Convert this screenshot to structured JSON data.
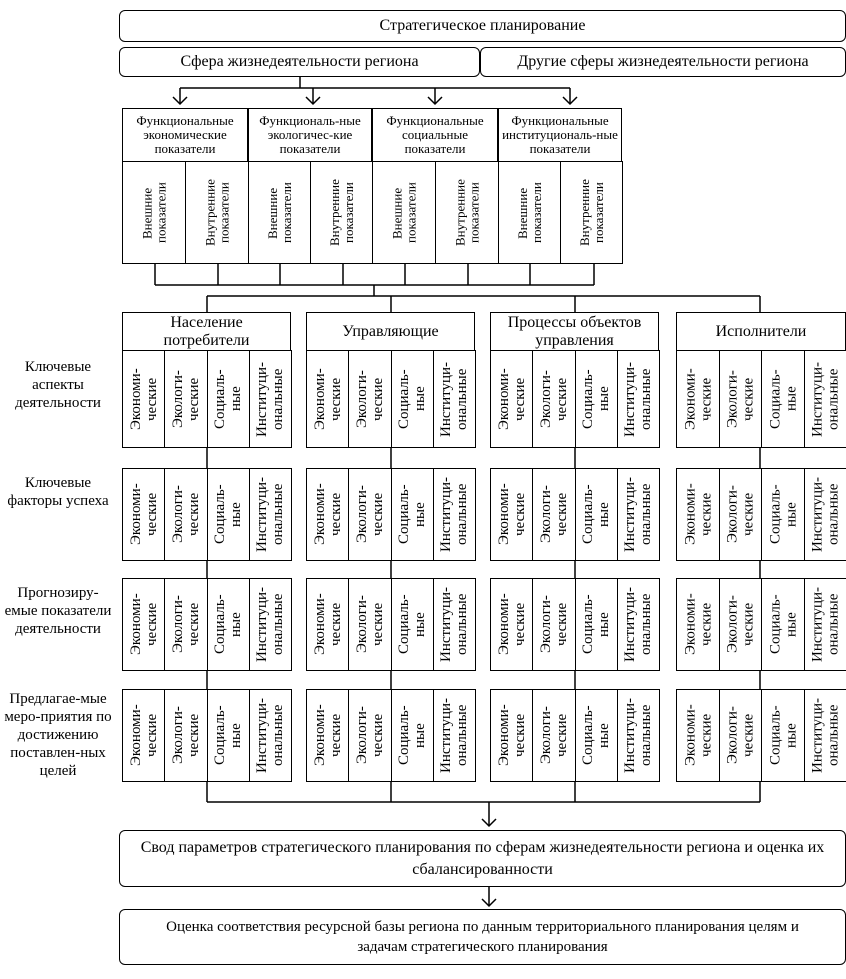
{
  "top": {
    "title": "Стратегическое планирование",
    "sphere": "Сфера жизнедеятельности региона",
    "other": "Другие сферы жизнедеятельности региона"
  },
  "func": [
    {
      "title": "Функциональные экономические показатели",
      "c1": "Внешние показатели",
      "c2": "Внутренние показатели"
    },
    {
      "title": "Функциональ-ные экологичес-кие показатели",
      "c1": "Внешние показатели",
      "c2": "Внутренние показатели"
    },
    {
      "title": "Функциональные социальные показатели",
      "c1": "Внешние показатели",
      "c2": "Внутренние показатели"
    },
    {
      "title": "Функциональные институциональ-ные показатели",
      "c1": "Внешние показатели",
      "c2": "Внутренние показатели"
    }
  ],
  "groups": [
    {
      "title": "Население потребители"
    },
    {
      "title": "Управляющие"
    },
    {
      "title": "Процессы объектов управления"
    },
    {
      "title": "Исполнители"
    }
  ],
  "rows": [
    {
      "label": "Ключевые аспекты деятельности"
    },
    {
      "label": "Ключевые факторы успеха"
    },
    {
      "label": "Прогнозиру-емые показатели деятельности"
    },
    {
      "label": "Предлагае-мые меро-приятия по достижению поставлен-ных целей"
    }
  ],
  "cells": {
    "econ": "Экономи-\nческие",
    "eco": "Экологи-\nческие",
    "soc": "Социаль-\nные",
    "inst": "Институци-\nональные"
  },
  "bottom": {
    "summary": "Свод параметров стратегического планирования по сферам жизнедеятельности региона и оценка их сбалансированности",
    "assessment": "Оценка соответствия ресурсной базы региона по данным территориального планирования целям и задачам стратегического планирования"
  }
}
